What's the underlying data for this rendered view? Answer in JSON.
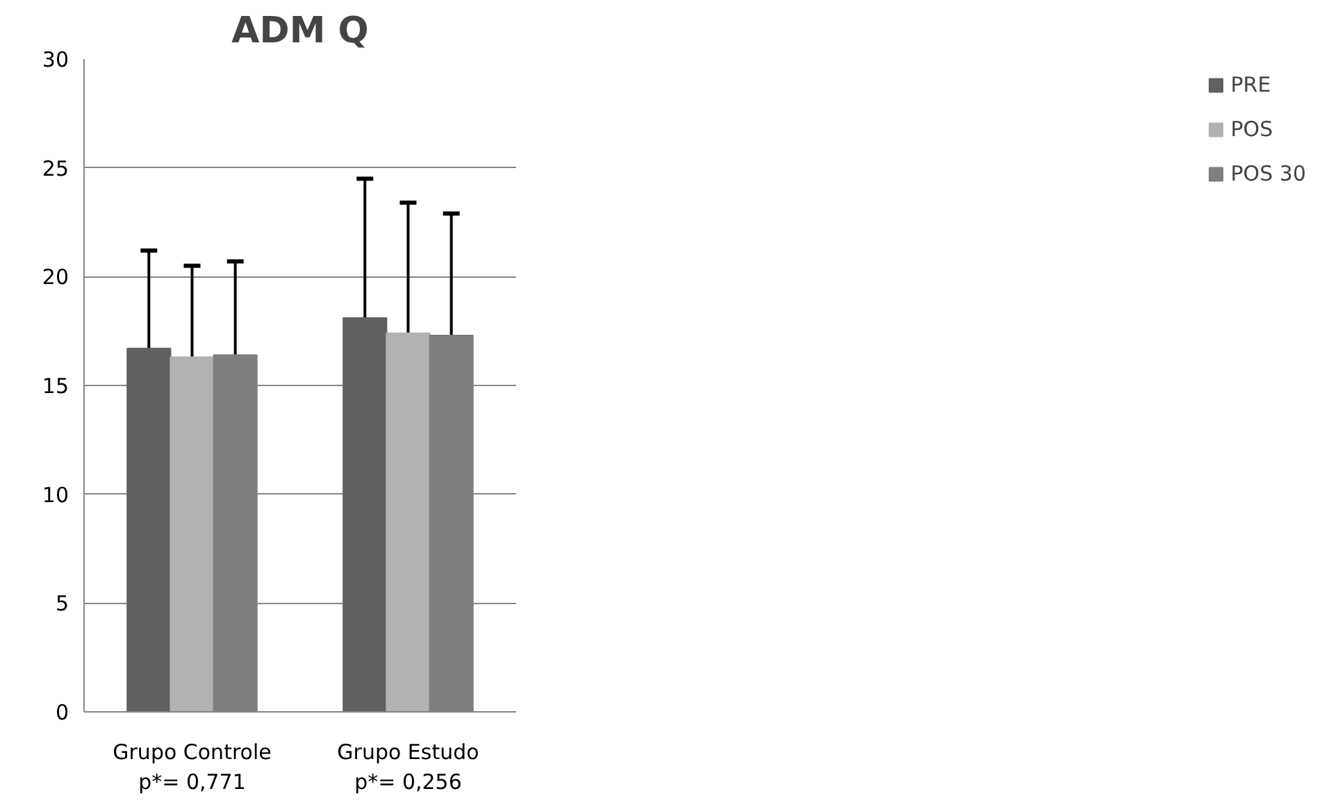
{
  "chart_data": {
    "type": "bar",
    "title": "ADM Q",
    "categories": [
      "Grupo Controle\np*= 0,771",
      "Grupo Estudo\np*= 0,256"
    ],
    "series": [
      {
        "name": "PRE",
        "color": "#606060",
        "values": [
          16.7,
          18.1
        ],
        "errors": [
          [
            16.7,
            21.2
          ],
          [
            18.1,
            24.5
          ]
        ]
      },
      {
        "name": "POS",
        "color": "#b2b2b2",
        "values": [
          16.3,
          17.4
        ],
        "errors": [
          [
            16.3,
            20.5
          ],
          [
            17.4,
            23.4
          ]
        ]
      },
      {
        "name": "POS 30",
        "color": "#7f7f7f",
        "values": [
          16.4,
          17.3
        ],
        "errors": [
          [
            16.4,
            20.7
          ],
          [
            17.3,
            22.9
          ]
        ]
      }
    ],
    "ylim": [
      0,
      30
    ],
    "yticks": [
      0,
      5,
      10,
      15,
      20,
      25,
      30
    ],
    "grid": "y",
    "legend": "right"
  }
}
